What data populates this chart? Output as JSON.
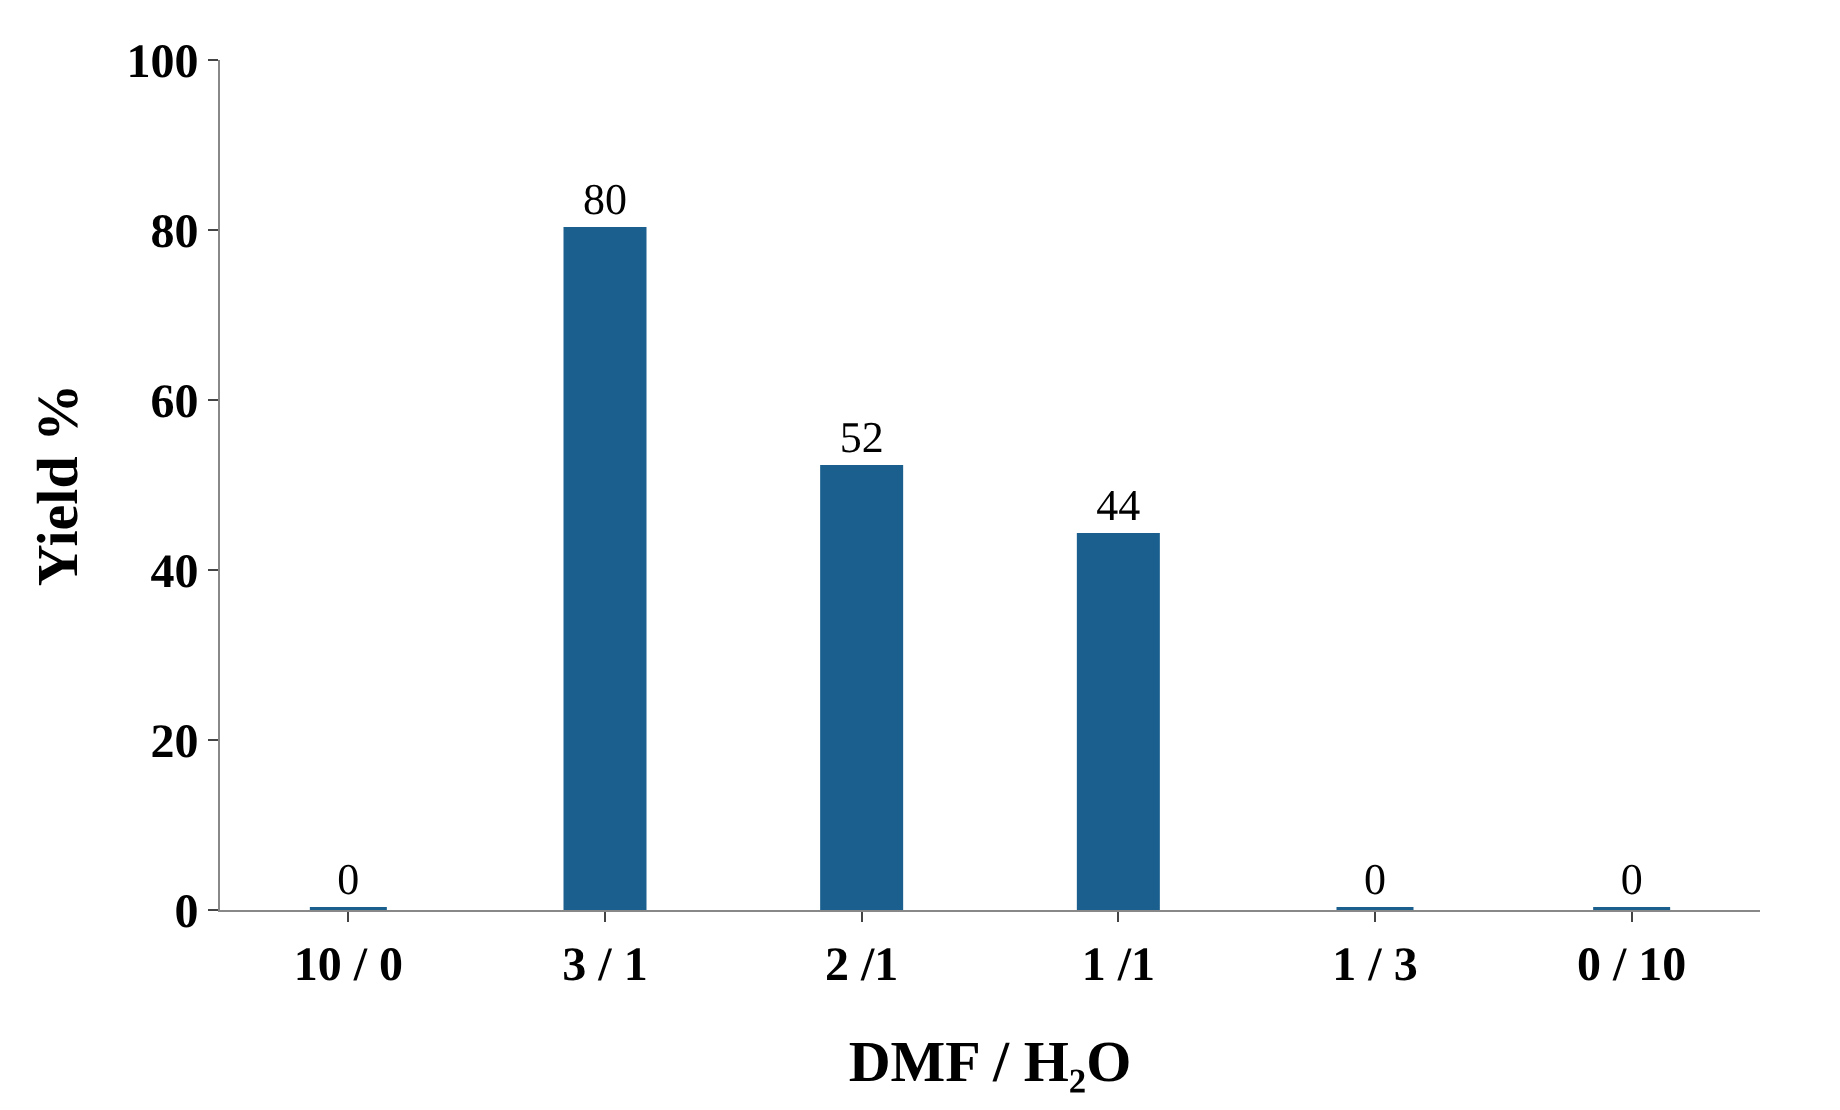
{
  "chart_data": {
    "type": "bar",
    "xlabel": "DMF / H₂O",
    "ylabel": "Yield %",
    "categories": [
      "10 / 0",
      "3 / 1",
      "2 /1",
      "1 /1",
      "1 / 3",
      "0 / 10"
    ],
    "values": [
      0,
      80,
      52,
      44,
      0,
      0
    ],
    "color": "#1b5f8e",
    "ylim": [
      0,
      100
    ],
    "yticks": [
      0,
      20,
      40,
      60,
      80,
      100
    ],
    "grid": false,
    "data_labels": true
  }
}
